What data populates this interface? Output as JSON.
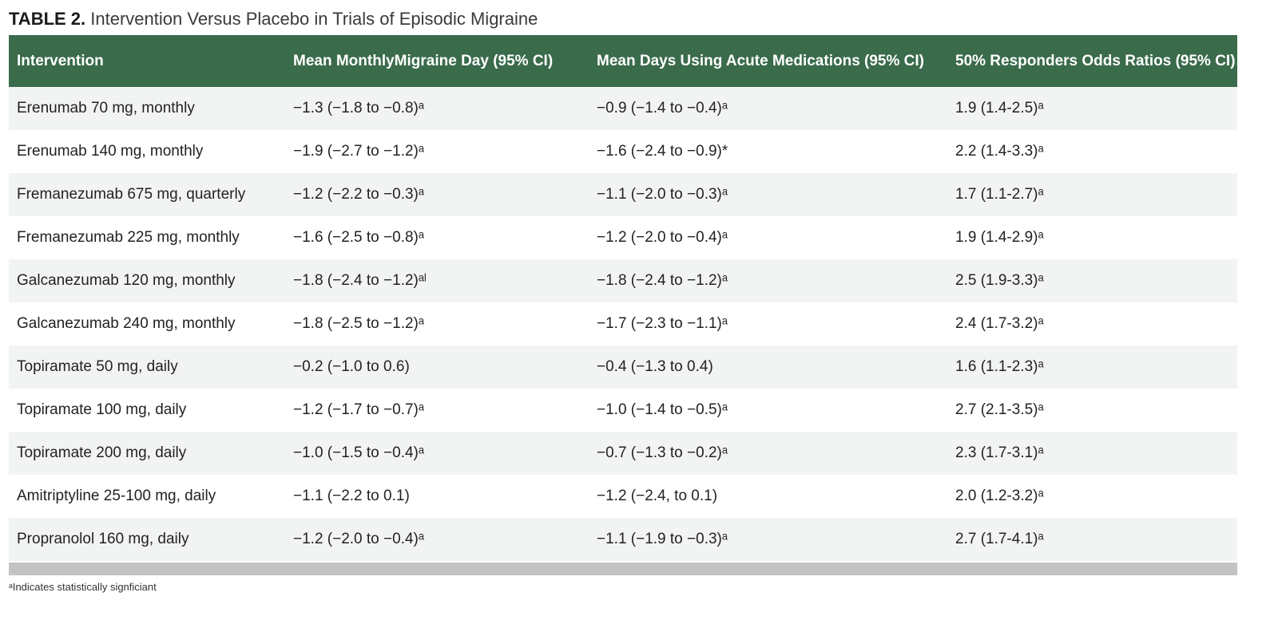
{
  "caption": {
    "label": "TABLE 2.",
    "title": "Intervention Versus Placebo in Trials of Episodic Migraine"
  },
  "colors": {
    "header_bg": "#3a6b4b",
    "row_alt_bg": "#f2f4f3",
    "bottom_bar": "#c3c3c1"
  },
  "table": {
    "headers": [
      "Intervention",
      "Mean MonthlyMigraine Day (95% CI)",
      "Mean Days Using Acute Medications (95% CI)",
      "50% Responders Odds Ratios (95% CI)"
    ],
    "rows": [
      [
        "Erenumab 70 mg, monthly",
        "−1.3 (−1.8 to −0.8)ᵃ",
        "−0.9 (−1.4 to −0.4)ᵃ",
        "1.9 (1.4-2.5)ᵃ"
      ],
      [
        "Erenumab 140 mg, monthly",
        "−1.9 (−2.7 to −1.2)ᵃ",
        "−1.6 (−2.4 to −0.9)*",
        "2.2 (1.4-3.3)ᵃ"
      ],
      [
        "Fremanezumab 675 mg, quarterly",
        "−1.2 (−2.2 to −0.3)ᵃ",
        "−1.1 (−2.0 to −0.3)ᵃ",
        "1.7 (1.1-2.7)ᵃ"
      ],
      [
        "Fremanezumab 225 mg, monthly",
        "−1.6 (−2.5 to −0.8)ᵃ",
        "−1.2 (−2.0 to −0.4)ᵃ",
        "1.9 (1.4-2.9)ᵃ"
      ],
      [
        "Galcanezumab 120 mg, monthly",
        "−1.8 (−2.4 to −1.2)ᵃˡ",
        "−1.8 (−2.4 to −1.2)ᵃ",
        "2.5 (1.9-3.3)ᵃ"
      ],
      [
        "Galcanezumab 240 mg, monthly",
        "−1.8 (−2.5 to −1.2)ᵃ",
        "−1.7 (−2.3 to −1.1)ᵃ",
        "2.4 (1.7-3.2)ᵃ"
      ],
      [
        "Topiramate 50 mg, daily",
        "−0.2 (−1.0 to 0.6)",
        "−0.4 (−1.3 to 0.4)",
        "1.6 (1.1-2.3)ᵃ"
      ],
      [
        "Topiramate 100 mg, daily",
        "−1.2 (−1.7 to −0.7)ᵃ",
        "−1.0 (−1.4 to −0.5)ᵃ",
        "2.7 (2.1-3.5)ᵃ"
      ],
      [
        "Topiramate 200 mg, daily",
        "−1.0 (−1.5 to −0.4)ᵃ",
        "−0.7 (−1.3 to −0.2)ᵃ",
        "2.3 (1.7-3.1)ᵃ"
      ],
      [
        "Amitriptyline 25-100 mg, daily",
        "−1.1 (−2.2 to 0.1)",
        "−1.2 (−2.4, to 0.1)",
        "2.0 (1.2-3.2)ᵃ"
      ],
      [
        "Propranolol 160 mg, daily",
        "−1.2 (−2.0 to −0.4)ᵃ",
        "−1.1 (−1.9 to −0.3)ᵃ",
        "2.7 (1.7-4.1)ᵃ"
      ]
    ]
  },
  "footnote": "ᵃIndicates statistically signficiant"
}
